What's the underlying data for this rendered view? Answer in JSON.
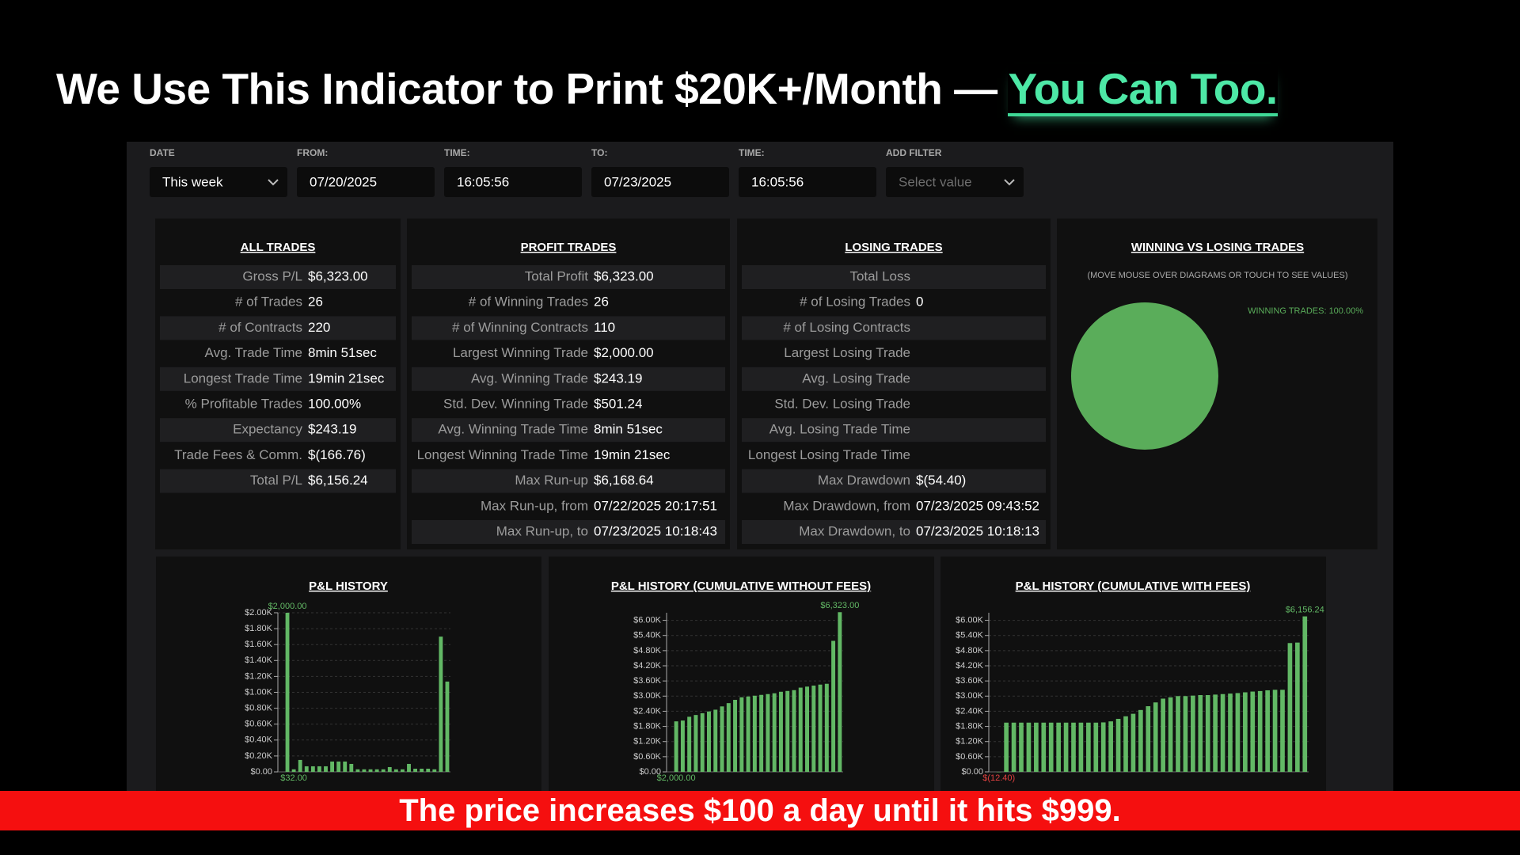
{
  "headline": {
    "text": "We Use This Indicator to Print $20K+/Month —",
    "highlight": "You Can Too."
  },
  "filters": [
    {
      "label": "DATE",
      "value": "This week",
      "dropdown": true
    },
    {
      "label": "FROM:",
      "value": "07/20/2025"
    },
    {
      "label": "TIME:",
      "value": "16:05:56"
    },
    {
      "label": "TO:",
      "value": "07/23/2025"
    },
    {
      "label": "TIME:",
      "value": "16:05:56"
    },
    {
      "label": "ADD FILTER",
      "placeholder": "Select value",
      "dropdown": true
    }
  ],
  "tables": [
    {
      "title": "ALL TRADES",
      "rows": [
        [
          "Gross P/L",
          "$6,323.00"
        ],
        [
          "# of Trades",
          "26"
        ],
        [
          "# of Contracts",
          "220"
        ],
        [
          "Avg. Trade Time",
          "8min 51sec"
        ],
        [
          "Longest Trade Time",
          "19min 21sec"
        ],
        [
          "% Profitable Trades",
          "100.00%"
        ],
        [
          "Expectancy",
          "$243.19"
        ],
        [
          "Trade Fees & Comm.",
          "$(166.76)"
        ],
        [
          "Total P/L",
          "$6,156.24"
        ]
      ]
    },
    {
      "title": "PROFIT TRADES",
      "rows": [
        [
          "Total Profit",
          "$6,323.00"
        ],
        [
          "# of Winning Trades",
          "26"
        ],
        [
          "# of Winning Contracts",
          "110"
        ],
        [
          "Largest Winning Trade",
          "$2,000.00"
        ],
        [
          "Avg. Winning Trade",
          "$243.19"
        ],
        [
          "Std. Dev. Winning Trade",
          "$501.24"
        ],
        [
          "Avg. Winning Trade Time",
          "8min 51sec"
        ],
        [
          "Longest Winning Trade Time",
          "19min 21sec"
        ],
        [
          "Max Run-up",
          "$6,168.64"
        ],
        [
          "Max Run-up, from",
          "07/22/2025 20:17:51"
        ],
        [
          "Max Run-up, to",
          "07/23/2025 10:18:43"
        ]
      ]
    },
    {
      "title": "LOSING TRADES",
      "rows": [
        [
          "Total Loss"
        ],
        [
          "# of Losing Trades",
          "0"
        ],
        [
          "# of Losing Contracts"
        ],
        [
          "Largest Losing Trade"
        ],
        [
          "Avg. Losing Trade"
        ],
        [
          "Std. Dev. Losing Trade"
        ],
        [
          "Avg. Losing Trade Time"
        ],
        [
          "Longest Losing Trade Time"
        ],
        [
          "Max Drawdown",
          "$(54.40)"
        ],
        [
          "Max Drawdown, from",
          "07/23/2025 09:43:52"
        ],
        [
          "Max Drawdown, to",
          "07/23/2025 10:18:13"
        ]
      ]
    }
  ],
  "pie": {
    "title": "WINNING VS LOSING TRADES",
    "subtitle": "(MOVE MOUSE OVER DIAGRAMS OR TOUCH TO SEE VALUES)",
    "slices": [
      {
        "name": "WINNING TRADES",
        "value": 100,
        "label": "WINNING TRADES: 100.00%",
        "color": "#5aad5a"
      }
    ]
  },
  "chart_data": [
    {
      "type": "bar",
      "title": "P&L HISTORY",
      "color": "#62b865",
      "values": [
        2000,
        32,
        150,
        70,
        70,
        70,
        70,
        130,
        130,
        130,
        100,
        32,
        32,
        32,
        32,
        32,
        60,
        32,
        32,
        100,
        40,
        40,
        40,
        32,
        1700,
        1135
      ],
      "max_label": "$2,000.00",
      "min_label": "$32.00",
      "ylim": [
        0,
        2000
      ],
      "yticks": [
        {
          "value": 0,
          "label": "$0.00"
        },
        {
          "value": 200,
          "label": "$0.20K"
        },
        {
          "value": 400,
          "label": "$0.40K"
        },
        {
          "value": 600,
          "label": "$0.60K"
        },
        {
          "value": 800,
          "label": "$0.80K"
        },
        {
          "value": 1000,
          "label": "$1.00K"
        },
        {
          "value": 1200,
          "label": "$1.20K"
        },
        {
          "value": 1400,
          "label": "$1.40K"
        },
        {
          "value": 1600,
          "label": "$1.60K"
        },
        {
          "value": 1800,
          "label": "$1.80K"
        },
        {
          "value": 2000,
          "label": "$2.00K"
        }
      ],
      "grid": true
    },
    {
      "type": "bar",
      "title": "P&L HISTORY (CUMULATIVE WITHOUT FEES)",
      "color": "#62b865",
      "values": [
        2000,
        2032,
        2182,
        2252,
        2322,
        2392,
        2462,
        2592,
        2722,
        2852,
        2952,
        2984,
        3016,
        3048,
        3080,
        3112,
        3172,
        3204,
        3236,
        3336,
        3376,
        3416,
        3456,
        3488,
        5188,
        6323
      ],
      "max_label": "$6,323.00",
      "min_label": "$2,000.00",
      "ylim": [
        0,
        6300
      ],
      "yticks": [
        {
          "value": 0,
          "label": "$0.00"
        },
        {
          "value": 600,
          "label": "$0.60K"
        },
        {
          "value": 1200,
          "label": "$1.20K"
        },
        {
          "value": 1800,
          "label": "$1.80K"
        },
        {
          "value": 2400,
          "label": "$2.40K"
        },
        {
          "value": 3000,
          "label": "$3.00K"
        },
        {
          "value": 3600,
          "label": "$3.60K"
        },
        {
          "value": 4200,
          "label": "$4.20K"
        },
        {
          "value": 4800,
          "label": "$4.80K"
        },
        {
          "value": 5400,
          "label": "$5.40K"
        },
        {
          "value": 6000,
          "label": "$6.00K"
        }
      ],
      "grid": true
    },
    {
      "type": "bar",
      "title": "P&L HISTORY (CUMULATIVE WITH FEES)",
      "color": "#62b865",
      "values": [
        -12.4,
        1950,
        1950,
        1950,
        1950,
        1950,
        1950,
        1950,
        1950,
        1950,
        1950,
        1950,
        1950,
        1950,
        1960,
        2000,
        2100,
        2200,
        2300,
        2450,
        2600,
        2750,
        2900,
        2950,
        3000,
        3000,
        3020,
        3040,
        3040,
        3060,
        3080,
        3100,
        3120,
        3150,
        3180,
        3200,
        3230,
        3250,
        3250,
        5100,
        5120,
        6156.24
      ],
      "max_label": "$6,156.24",
      "min_label": "$(12.40)",
      "ylim": [
        0,
        6300
      ],
      "yticks": [
        {
          "value": 0,
          "label": "$0.00"
        },
        {
          "value": 600,
          "label": "$0.60K"
        },
        {
          "value": 1200,
          "label": "$1.20K"
        },
        {
          "value": 1800,
          "label": "$1.80K"
        },
        {
          "value": 2400,
          "label": "$2.40K"
        },
        {
          "value": 3000,
          "label": "$3.00K"
        },
        {
          "value": 3600,
          "label": "$3.60K"
        },
        {
          "value": 4200,
          "label": "$4.20K"
        },
        {
          "value": 4800,
          "label": "$4.80K"
        },
        {
          "value": 5400,
          "label": "$5.40K"
        },
        {
          "value": 6000,
          "label": "$6.00K"
        }
      ],
      "grid": true
    }
  ],
  "banner": {
    "text": "The price increases $100 a day until it hits $999."
  }
}
